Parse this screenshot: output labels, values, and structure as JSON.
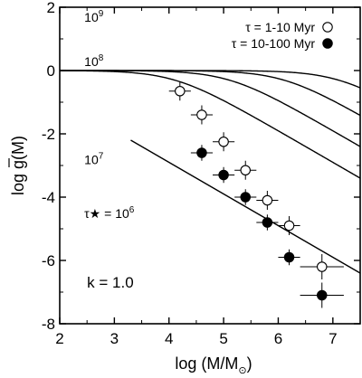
{
  "chart_data": {
    "type": "scatter",
    "xlabel": "log (M/M",
    "xlabel_sub": "⊙",
    "xlabel_close": ")",
    "ylabel": "log g(M)",
    "xlim": [
      2,
      7.5
    ],
    "ylim": [
      -8,
      2
    ],
    "x_ticks": [
      2,
      3,
      4,
      5,
      6,
      7
    ],
    "x_tick_labels": [
      "2",
      "3",
      "4",
      "5",
      "6",
      "7"
    ],
    "y_ticks": [
      2,
      0,
      -2,
      -4,
      -6,
      -8
    ],
    "y_tick_labels": [
      "2",
      "0",
      "-2",
      "-4",
      "-6",
      "-8"
    ],
    "annotation": "k = 1.0",
    "legend": [
      {
        "label": "τ = 1-10 Myr",
        "marker": "open-circle"
      },
      {
        "label": "τ = 10-100 Myr",
        "marker": "filled-circle"
      }
    ],
    "curves": [
      {
        "label": "10",
        "exp": "9",
        "logTau": 9,
        "label_at": [
          2.45,
          1.55
        ]
      },
      {
        "label": "10",
        "exp": "8",
        "logTau": 8,
        "label_at": [
          2.45,
          0.15
        ]
      },
      {
        "label": "10",
        "exp": "7",
        "logTau": 7,
        "label_at": [
          2.45,
          -2.95
        ]
      },
      {
        "label": "τ★ = 10",
        "exp": "6",
        "logTau": 6,
        "label_at": [
          2.45,
          -4.65
        ]
      }
    ],
    "series": [
      {
        "name": "τ = 1-10 Myr",
        "marker": "open",
        "points": [
          {
            "x": 4.2,
            "y": -0.65,
            "xerr": 0.2,
            "yerr": 0.3
          },
          {
            "x": 4.6,
            "y": -1.4,
            "xerr": 0.2,
            "yerr": 0.3
          },
          {
            "x": 5.0,
            "y": -2.25,
            "xerr": 0.2,
            "yerr": 0.3
          },
          {
            "x": 5.4,
            "y": -3.15,
            "xerr": 0.2,
            "yerr": 0.3
          },
          {
            "x": 5.8,
            "y": -4.1,
            "xerr": 0.2,
            "yerr": 0.3
          },
          {
            "x": 6.2,
            "y": -4.9,
            "xerr": 0.2,
            "yerr": 0.3
          },
          {
            "x": 6.8,
            "y": -6.2,
            "xerr": 0.4,
            "yerr": 0.4
          }
        ]
      },
      {
        "name": "τ = 10-100 Myr",
        "marker": "filled",
        "points": [
          {
            "x": 4.6,
            "y": -2.6,
            "xerr": 0.2,
            "yerr": 0.25
          },
          {
            "x": 5.0,
            "y": -3.3,
            "xerr": 0.2,
            "yerr": 0.25
          },
          {
            "x": 5.4,
            "y": -4.0,
            "xerr": 0.2,
            "yerr": 0.25
          },
          {
            "x": 5.8,
            "y": -4.8,
            "xerr": 0.2,
            "yerr": 0.25
          },
          {
            "x": 6.2,
            "y": -5.9,
            "xerr": 0.2,
            "yerr": 0.25
          },
          {
            "x": 6.8,
            "y": -7.1,
            "xerr": 0.4,
            "yerr": 0.4
          }
        ]
      }
    ]
  }
}
